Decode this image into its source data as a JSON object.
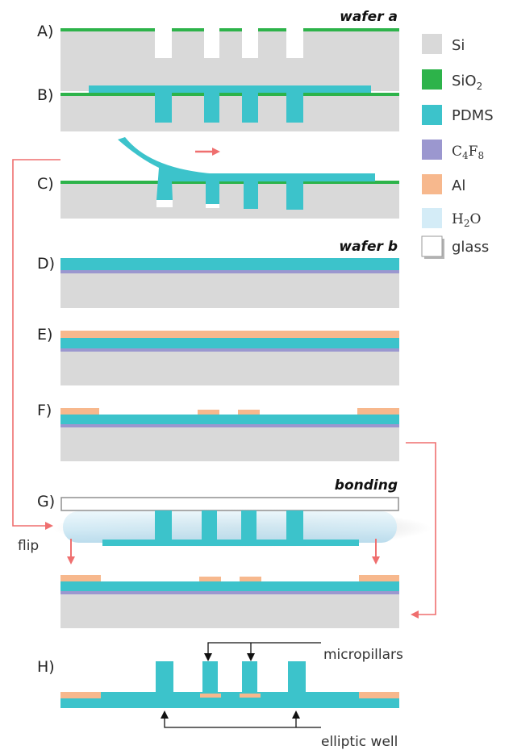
{
  "colors": {
    "si": "#d9d9d9",
    "sio2": "#2db34a",
    "pdms": "#3cc3cb",
    "c4f8": "#9b97cf",
    "al": "#f7b88d",
    "h2o": "#d4ecf7",
    "glass": "#ffffff",
    "arrow": "#ef6f6f"
  },
  "steps": {
    "a": "A)",
    "b": "B)",
    "c": "C)",
    "d": "D)",
    "e": "E)",
    "f": "F)",
    "g": "G)",
    "h": "H)"
  },
  "headings": {
    "wafer_a": "wafer a",
    "wafer_b": "wafer b",
    "bonding": "bonding"
  },
  "legend": {
    "si": "Si",
    "sio2_main": "SiO",
    "sio2_sub": "2",
    "pdms": "PDMS",
    "c4f8_c": "C",
    "c4f8_c_sub": "4",
    "c4f8_f": "F",
    "c4f8_f_sub": "8",
    "al": "Al",
    "h2o_h": "H",
    "h2o_sub": "2",
    "h2o_o": "O",
    "glass": "glass"
  },
  "labels": {
    "flip": "flip",
    "micropillars": "micropillars",
    "elliptic_well": "elliptic well"
  }
}
